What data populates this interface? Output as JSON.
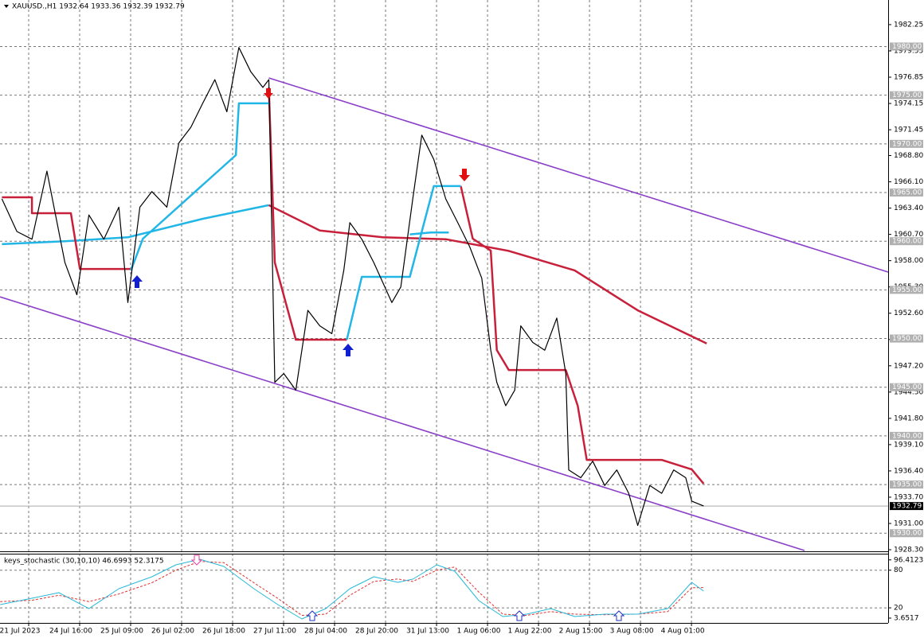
{
  "chart_data": [
    {
      "type": "line",
      "title": "XAUUSD.,H1  1932.64 1933.36 1932.39 1932.79",
      "xlim": [
        -6.64,
        289.5
      ],
      "ylim": [
        1928.14,
        1984.78
      ],
      "xticks": [
        {
          "value": 0,
          "label": "21 Jul 2023"
        },
        {
          "value": 17,
          "label": "24 Jul 16:00"
        },
        {
          "value": 34,
          "label": "25 Jul 09:00"
        },
        {
          "value": 51,
          "label": "26 Jul 02:00"
        },
        {
          "value": 68,
          "label": "26 Jul 18:00"
        },
        {
          "value": 85,
          "label": "27 Jul 11:00"
        },
        {
          "value": 102,
          "label": "28 Jul 04:00"
        },
        {
          "value": 119,
          "label": "28 Jul 20:00"
        },
        {
          "value": 136,
          "label": "31 Jul 13:00"
        },
        {
          "value": 153,
          "label": "1 Aug 06:00"
        },
        {
          "value": 170,
          "label": "1 Aug 22:00"
        },
        {
          "value": 187,
          "label": "2 Aug 15:00"
        },
        {
          "value": 204,
          "label": "3 Aug 08:00"
        },
        {
          "value": 221,
          "label": "4 Aug 01:00"
        }
      ],
      "yticks": [
        {
          "value": 1982.25,
          "label": "1982.25"
        },
        {
          "value": 1979.55,
          "label": "1979.55"
        },
        {
          "value": 1976.85,
          "label": "1976.85"
        },
        {
          "value": 1974.15,
          "label": "1974.15"
        },
        {
          "value": 1971.45,
          "label": "1971.45"
        },
        {
          "value": 1968.8,
          "label": "1968.80"
        },
        {
          "value": 1966.1,
          "label": "1966.10"
        },
        {
          "value": 1963.4,
          "label": "1963.40"
        },
        {
          "value": 1960.7,
          "label": "1960.70"
        },
        {
          "value": 1958,
          "label": "1958.00"
        },
        {
          "value": 1955.3,
          "label": "1955.30"
        },
        {
          "value": 1952.6,
          "label": "1952.60"
        },
        {
          "value": 1949.9,
          "label": "1949.90"
        },
        {
          "value": 1947.2,
          "label": "1947.20"
        },
        {
          "value": 1944.5,
          "label": "1944.50"
        },
        {
          "value": 1941.8,
          "label": "1941.80"
        },
        {
          "value": 1939.1,
          "label": "1939.10"
        },
        {
          "value": 1936.4,
          "label": "1936.40"
        },
        {
          "value": 1933.7,
          "label": "1933.70"
        },
        {
          "value": 1931,
          "label": "1931.00"
        },
        {
          "value": 1928.3,
          "label": "1928.30"
        }
      ],
      "levels": [
        {
          "value": 1980,
          "label": "1980.00"
        },
        {
          "value": 1975,
          "label": "1975.00"
        },
        {
          "value": 1970,
          "label": "1970.00"
        },
        {
          "value": 1965,
          "label": "1965.00"
        },
        {
          "value": 1960,
          "label": "1960.00"
        },
        {
          "value": 1955,
          "label": "1955.00"
        },
        {
          "value": 1950,
          "label": "1950.00"
        },
        {
          "value": 1945,
          "label": "1945.00"
        },
        {
          "value": 1940,
          "label": "1940.00"
        },
        {
          "value": 1935,
          "label": "1935.00"
        },
        {
          "value": 1930,
          "label": "1930.00"
        }
      ],
      "current": {
        "value": 1932.79,
        "label": "1932.79"
      },
      "series": [
        {
          "color": "#21b6e6",
          "x": [
            -6,
            15,
            36,
            61,
            83,
            110,
            130,
            137,
            143
          ],
          "values": [
            1959.7,
            1960.0,
            1960.4,
            1962.3,
            1963.7,
            null,
            1960.7,
            1960.9,
            1960.9
          ]
        },
        {
          "color": "#c8203a",
          "x": [
            83,
            100,
            121,
            142,
            163,
            185,
            206,
            229
          ],
          "values": [
            1963.7,
            1961.1,
            1960.4,
            1960.2,
            1959.0,
            1957.0,
            1952.9,
            1949.5
          ]
        },
        {
          "color": "#c8203a",
          "x": [
            -6,
            4,
            4,
            17,
            20,
            37,
            60,
            83,
            85,
            92,
            109,
            128,
            147,
            151,
            157,
            159,
            163,
            182,
            186,
            189,
            214,
            224,
            228
          ],
          "values": [
            1964.51,
            1964.51,
            1962.88,
            1962.88,
            1957.15,
            1957.15,
            null,
            1975.79,
            1957.81,
            1949.88,
            1949.88,
            null,
            1965.66,
            1960.26,
            1959.03,
            1948.82,
            1946.77,
            1946.77,
            1943.09,
            1937.53,
            1937.53,
            1936.55,
            1935.08
          ]
        },
        {
          "color": "#21b6e6",
          "x": [
            37,
            41,
            72,
            73,
            83,
            96,
            109,
            114,
            130,
            138,
            147
          ],
          "values": [
            1956.99,
            1960.26,
            1968.84,
            1974.16,
            1974.16,
            null,
            1949.88,
            1956.34,
            1956.34,
            1965.66,
            1965.66
          ]
        },
        {
          "color": "#000000",
          "x": [
            -6,
            -1,
            4,
            9,
            15,
            19,
            23,
            28,
            33,
            36,
            40,
            44,
            49,
            53,
            57,
            61,
            65,
            69,
            73,
            77,
            81,
            83,
            85,
            88,
            92,
            96,
            100,
            104,
            108,
            110,
            114,
            118,
            124,
            127,
            131,
            134,
            138,
            142,
            146,
            150,
            154,
            157,
            159,
            162,
            165,
            167,
            171,
            175,
            179,
            182,
            183,
            187,
            191,
            195,
            199,
            203,
            206,
            210,
            214,
            218,
            222,
            224,
            228
          ],
          "values": [
            1964.35,
            1961.0,
            1960.2,
            1967.2,
            1957.8,
            1954.5,
            1962.7,
            1960.2,
            1963.5,
            1953.7,
            1963.5,
            1965.1,
            1963.5,
            1970.1,
            1971.7,
            1974.2,
            1976.6,
            1973.3,
            1979.9,
            1977.4,
            1975.8,
            1976.6,
            1945.5,
            1946.4,
            1944.7,
            1952.9,
            1951.3,
            1950.5,
            1957.0,
            1961.9,
            1960.2,
            1957.8,
            1953.7,
            1955.3,
            1964.35,
            1970.9,
            1968.4,
            1964.35,
            1961.9,
            1959.4,
            1956.2,
            1948.8,
            1945.5,
            1943.1,
            1944.7,
            1951.3,
            1949.6,
            1948.8,
            1952.1,
            1946.4,
            1936.5,
            1935.7,
            1937.4,
            1934.9,
            1936.5,
            1934.1,
            1930.8,
            1934.9,
            1934.1,
            1936.5,
            1935.7,
            1933.3,
            1932.79
          ]
        }
      ],
      "trendlines": [
        {
          "color": "#8a3fc8",
          "x": [
            83,
            289.5
          ],
          "values": [
            1976.77,
            1956.83
          ]
        },
        {
          "color": "#8a3fc8",
          "x": [
            -6.64,
            261.6
          ],
          "values": [
            1954.29,
            1928.22
          ]
        }
      ]
    },
    {
      "type": "line",
      "title": "keys_stochastic (30,10,10) 46.6993 52.3175",
      "xlim": [
        -6.64,
        289.5
      ],
      "ylim": [
        -4,
        105
      ],
      "yticks": [
        96.4123,
        80,
        20,
        3.6517
      ],
      "levels": [
        80,
        20
      ],
      "series": [
        {
          "color": "#e03030",
          "dash": true,
          "x": [
            -6.6,
            4,
            13,
            23,
            33,
            44,
            52,
            60,
            68,
            78,
            86,
            94,
            102,
            110,
            118,
            126,
            131,
            139,
            145,
            153,
            161,
            169,
            177,
            185,
            195,
            206,
            216,
            224,
            228
          ],
          "values": [
            30,
            32,
            40,
            30,
            42,
            60,
            80,
            94,
            92,
            60,
            35,
            8,
            10,
            40,
            62,
            66,
            62,
            80,
            85,
            45,
            10,
            8,
            14,
            10,
            9,
            10,
            14,
            52,
            52.3175
          ]
        },
        {
          "color": "#28b8d8",
          "x": [
            -6.6,
            4,
            13,
            23,
            33,
            44,
            52,
            60,
            68,
            78,
            86,
            94,
            102,
            110,
            118,
            126,
            131,
            139,
            145,
            153,
            161,
            169,
            177,
            185,
            195,
            206,
            216,
            224,
            228
          ],
          "values": [
            25.2,
            35.3,
            44.2,
            18.8,
            50.5,
            69.5,
            88.5,
            97.4,
            86,
            50.5,
            25.2,
            2.3,
            18.8,
            50.5,
            69.5,
            60.6,
            65.7,
            88.5,
            78.4,
            31.5,
            6.1,
            9.9,
            18.8,
            6.1,
            9.9,
            9.9,
            18.8,
            60.6,
            46.6993
          ]
        }
      ]
    }
  ]
}
